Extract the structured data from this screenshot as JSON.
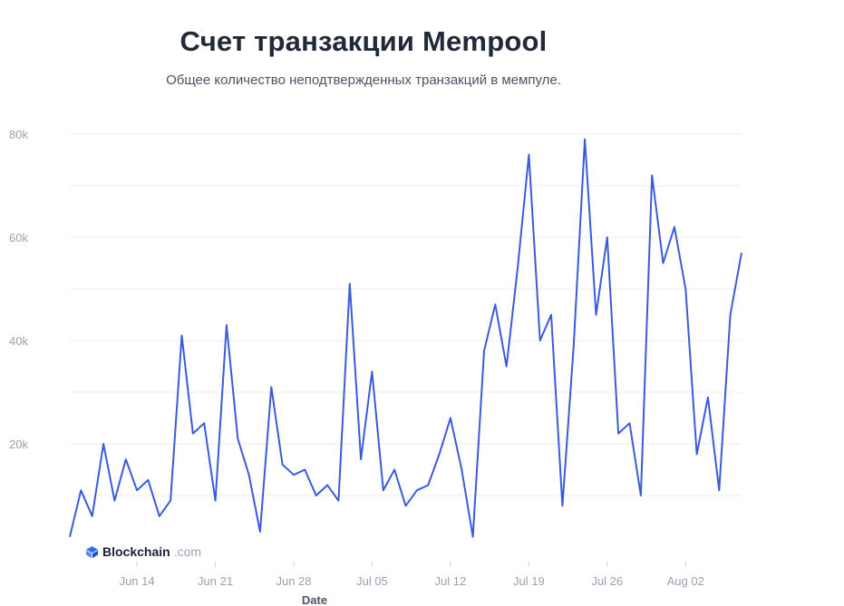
{
  "title": "Счет транзакции Mempool",
  "subtitle": "Общее количество неподтвержденных транзакций в мемпуле.",
  "logo": {
    "name": "Blockchain",
    "suffix": ".com"
  },
  "colors": {
    "line": "#3b5bdb",
    "grid": "#ececf1",
    "axis_text": "#9aa1b2",
    "title": "#1f2937"
  },
  "chart_data": {
    "type": "line",
    "title": "Счет транзакции Mempool",
    "subtitle": "Общее количество неподтвержденных транзакций в мемпуле.",
    "xlabel": "Date",
    "ylabel": "",
    "x_range": [
      "2021-06-08",
      "2021-08-07"
    ],
    "ylim": [
      0,
      80000
    ],
    "y_ticks": [
      20000,
      40000,
      60000,
      80000
    ],
    "y_tick_labels": [
      "20k",
      "40k",
      "60k",
      "80k"
    ],
    "x_ticks": [
      "2021-06-14",
      "2021-06-21",
      "2021-06-28",
      "2021-07-05",
      "2021-07-12",
      "2021-07-19",
      "2021-07-26",
      "2021-08-02"
    ],
    "x_tick_labels": [
      "Jun 14",
      "Jun 21",
      "Jun 28",
      "Jul 05",
      "Jul 12",
      "Jul 19",
      "Jul 26",
      "Aug 02"
    ],
    "grid": true,
    "series": [
      {
        "name": "",
        "x": [
          "2021-06-08",
          "2021-06-09",
          "2021-06-10",
          "2021-06-11",
          "2021-06-12",
          "2021-06-13",
          "2021-06-14",
          "2021-06-15",
          "2021-06-16",
          "2021-06-17",
          "2021-06-18",
          "2021-06-19",
          "2021-06-20",
          "2021-06-21",
          "2021-06-22",
          "2021-06-23",
          "2021-06-24",
          "2021-06-25",
          "2021-06-26",
          "2021-06-27",
          "2021-06-28",
          "2021-06-29",
          "2021-06-30",
          "2021-07-01",
          "2021-07-02",
          "2021-07-03",
          "2021-07-04",
          "2021-07-05",
          "2021-07-06",
          "2021-07-07",
          "2021-07-08",
          "2021-07-09",
          "2021-07-10",
          "2021-07-11",
          "2021-07-12",
          "2021-07-13",
          "2021-07-14",
          "2021-07-15",
          "2021-07-16",
          "2021-07-17",
          "2021-07-18",
          "2021-07-19",
          "2021-07-20",
          "2021-07-21",
          "2021-07-22",
          "2021-07-23",
          "2021-07-24",
          "2021-07-25",
          "2021-07-26",
          "2021-07-27",
          "2021-07-28",
          "2021-07-29",
          "2021-07-30",
          "2021-07-31",
          "2021-08-01",
          "2021-08-02",
          "2021-08-03",
          "2021-08-04",
          "2021-08-05",
          "2021-08-06",
          "2021-08-07"
        ],
        "y": [
          2000,
          11000,
          6000,
          20000,
          9000,
          17000,
          11000,
          13000,
          6000,
          9000,
          41000,
          22000,
          24000,
          9000,
          43000,
          21000,
          14000,
          3000,
          31000,
          16000,
          14000,
          15000,
          10000,
          12000,
          9000,
          51000,
          17000,
          34000,
          11000,
          15000,
          8000,
          11000,
          12000,
          18000,
          25000,
          15000,
          2000,
          38000,
          47000,
          35000,
          54000,
          76000,
          40000,
          45000,
          8000,
          39000,
          79000,
          45000,
          60000,
          22000,
          24000,
          10000,
          72000,
          55000,
          62000,
          50000,
          18000,
          29000,
          11000,
          45000,
          57000
        ]
      }
    ]
  }
}
